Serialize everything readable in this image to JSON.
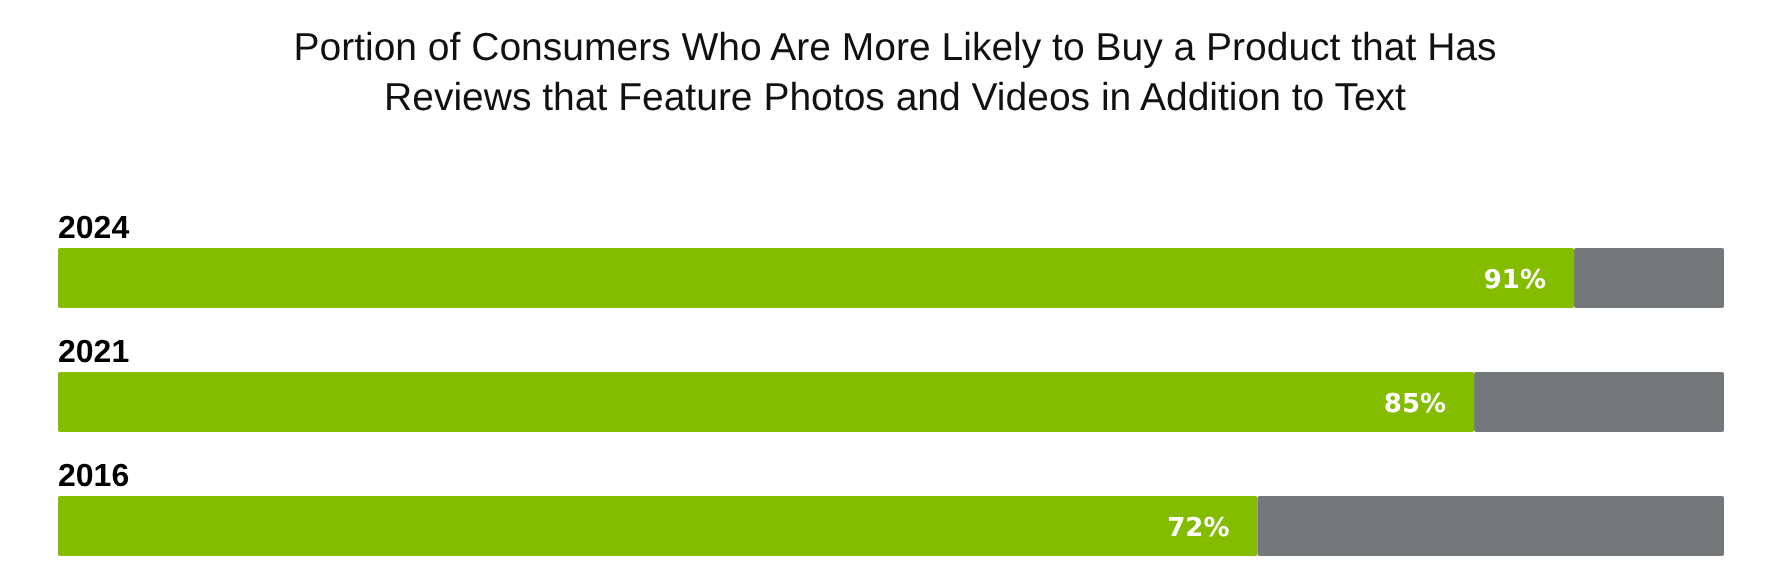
{
  "chart_data": {
    "type": "bar",
    "orientation": "horizontal",
    "stacked": true,
    "title": "Portion of Consumers Who Are More Likely to Buy a Product that Has\nReviews that Feature Photos and Videos in Addition to Text",
    "categories": [
      "2024",
      "2021",
      "2016"
    ],
    "xlim": [
      0,
      100
    ],
    "tick_labels": false,
    "series": [
      {
        "color": "#84bd00",
        "values": [
          91,
          85,
          72
        ],
        "value_labels": [
          "91%",
          "85%",
          "72%"
        ]
      },
      {
        "color": "#75787b",
        "values": [
          9,
          15,
          28
        ]
      }
    ]
  }
}
